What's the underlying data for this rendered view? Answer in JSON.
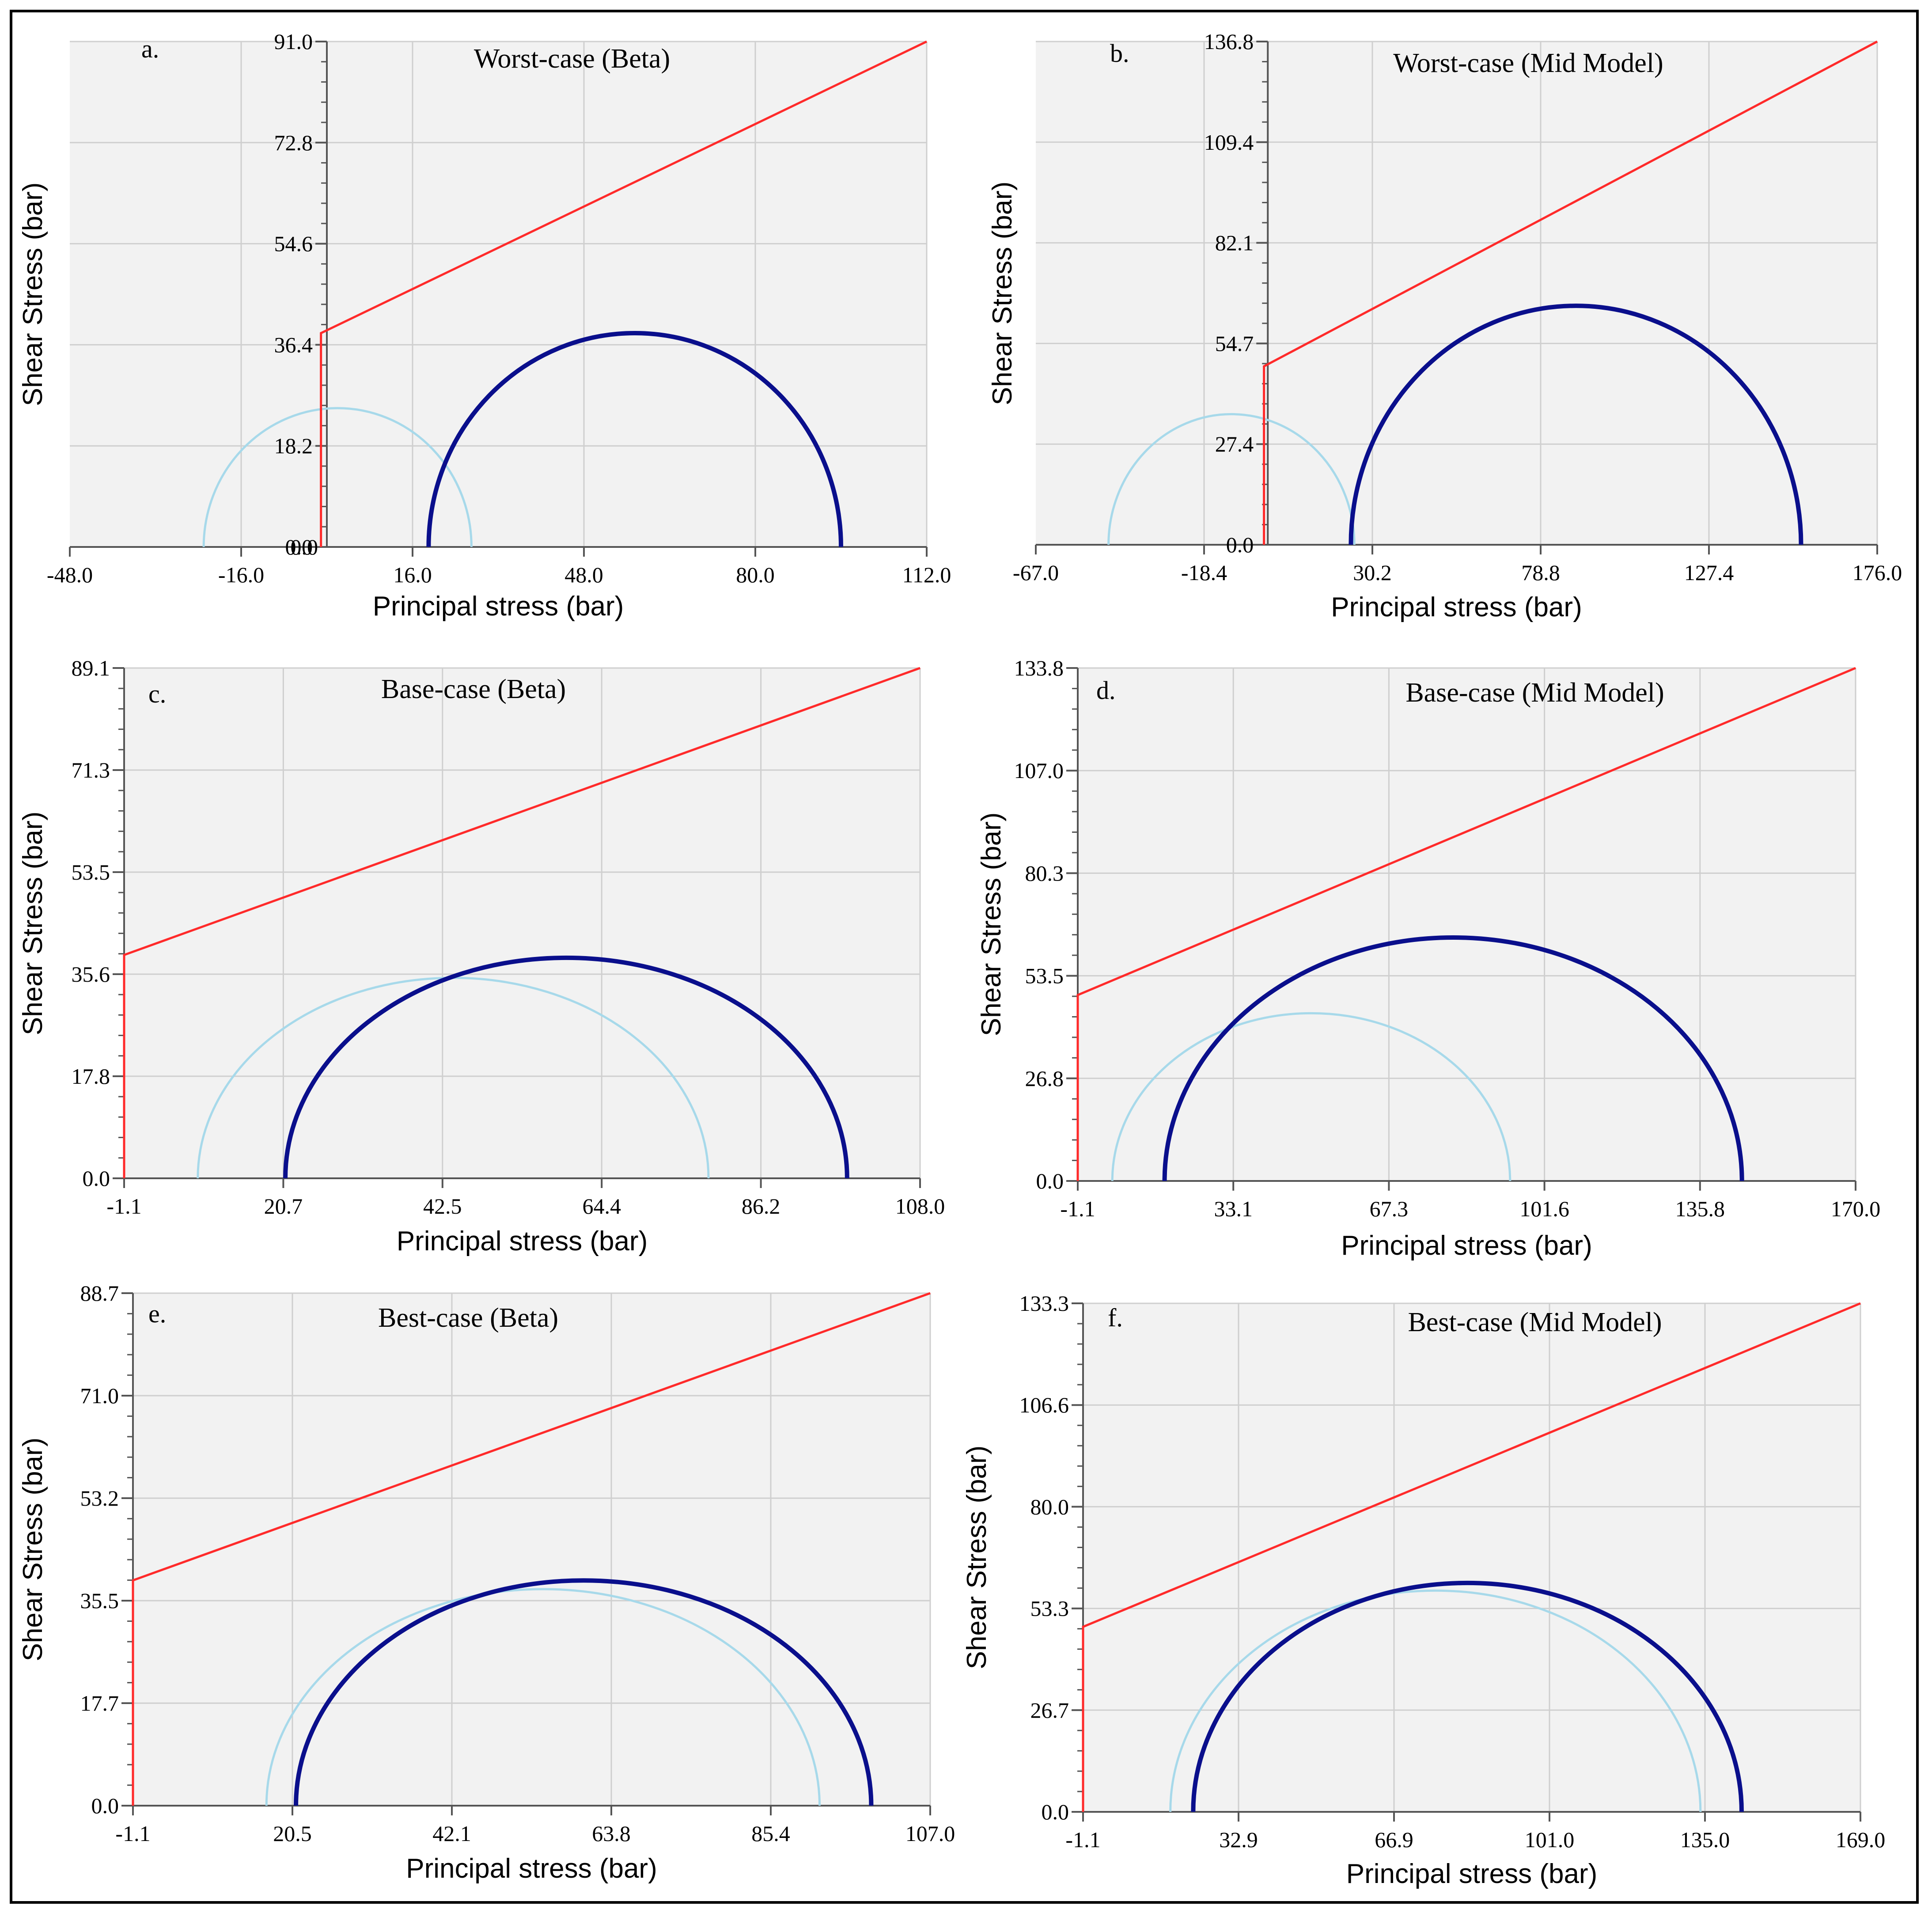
{
  "figure": {
    "panels_count": 6,
    "colors": {
      "plot_background": "#f2f2f2",
      "grid": "#cfcfcf",
      "axis": "#555555",
      "envelope": "#ff2a2a",
      "circle_light": "#a7d9ea",
      "circle_dark": "#0a0f8c"
    }
  },
  "chart_data": [
    {
      "type": "line",
      "panel_letter": "a.",
      "title": "Worst-case (Beta)",
      "xlabel": "Principal stress (bar)",
      "ylabel": "Shear Stress (bar)",
      "xlim": [
        -48.0,
        112.0
      ],
      "ylim": [
        0.0,
        91.0
      ],
      "xticks": [
        "-48.0",
        "-16.0",
        "16.0",
        "48.0",
        "80.0",
        "112.0"
      ],
      "yticks": [
        "0.0",
        "18.2",
        "36.4",
        "54.6",
        "72.8",
        "91.0"
      ],
      "y_axis_at_x": 0.0,
      "y_axis_extra_label": "0.0",
      "envelope": {
        "x_start": -1.1,
        "cohesion": 38.5,
        "x_end": 112.0,
        "y_end": 91.0
      },
      "circles": [
        {
          "name": "light-circle",
          "sigma3": -23.0,
          "sigma1": 27.0
        },
        {
          "name": "dark-circle",
          "sigma3": 19.0,
          "sigma1": 96.0
        }
      ]
    },
    {
      "type": "line",
      "panel_letter": "b.",
      "title": "Worst-case (Mid Model)",
      "xlabel": "Principal stress (bar)",
      "ylabel": "Shear Stress (bar)",
      "xlim": [
        -67.0,
        176.0
      ],
      "ylim": [
        0.0,
        136.8
      ],
      "xticks": [
        "-67.0",
        "-18.4",
        "30.2",
        "78.8",
        "127.4",
        "176.0"
      ],
      "yticks": [
        "0.0",
        "27.4",
        "54.7",
        "82.1",
        "109.4",
        "136.8"
      ],
      "y_axis_at_x": 0.0,
      "envelope": {
        "x_start": -1.1,
        "cohesion": 48.5,
        "x_end": 176.0,
        "y_end": 136.8
      },
      "circles": [
        {
          "name": "light-circle",
          "sigma3": -46.0,
          "sigma1": 25.0
        },
        {
          "name": "dark-circle",
          "sigma3": 24.0,
          "sigma1": 154.0
        }
      ]
    },
    {
      "type": "line",
      "panel_letter": "c.",
      "title": "Base-case (Beta)",
      "xlabel": "Principal stress (bar)",
      "ylabel": "Shear Stress (bar)",
      "xlim": [
        -1.1,
        108.0
      ],
      "ylim": [
        0.0,
        89.1
      ],
      "xticks": [
        "-1.1",
        "20.7",
        "42.5",
        "64.4",
        "86.2",
        "108.0"
      ],
      "yticks": [
        "0.0",
        "17.8",
        "35.6",
        "53.5",
        "71.3",
        "89.1"
      ],
      "y_axis_at_x": -1.1,
      "envelope": {
        "x_start": -1.1,
        "cohesion": 39.0,
        "x_end": 108.0,
        "y_end": 89.1
      },
      "circles": [
        {
          "name": "light-circle",
          "sigma3": 9.0,
          "sigma1": 79.0
        },
        {
          "name": "dark-circle",
          "sigma3": 21.0,
          "sigma1": 98.0
        }
      ]
    },
    {
      "type": "line",
      "panel_letter": "d.",
      "title": "Base-case (Mid Model)",
      "xlabel": "Principal stress (bar)",
      "ylabel": "Shear Stress (bar)",
      "xlim": [
        -1.1,
        170.0
      ],
      "ylim": [
        0.0,
        133.8
      ],
      "xticks": [
        "-1.1",
        "33.1",
        "67.3",
        "101.6",
        "135.8",
        "170.0"
      ],
      "yticks": [
        "0.0",
        "26.8",
        "53.5",
        "80.3",
        "107.0",
        "133.8"
      ],
      "y_axis_at_x": -1.1,
      "envelope": {
        "x_start": -1.1,
        "cohesion": 48.5,
        "x_end": 170.0,
        "y_end": 133.8
      },
      "circles": [
        {
          "name": "light-circle",
          "sigma3": 6.5,
          "sigma1": 94.0
        },
        {
          "name": "dark-circle",
          "sigma3": 18.0,
          "sigma1": 145.0
        }
      ]
    },
    {
      "type": "line",
      "panel_letter": "e.",
      "title": "Best-case (Beta)",
      "xlabel": "Principal stress (bar)",
      "ylabel": "Shear Stress (bar)",
      "xlim": [
        -1.1,
        107.0
      ],
      "ylim": [
        0.0,
        88.7
      ],
      "xticks": [
        "-1.1",
        "20.5",
        "42.1",
        "63.8",
        "85.4",
        "107.0"
      ],
      "yticks": [
        "0.0",
        "17.7",
        "35.5",
        "53.2",
        "71.0",
        "88.7"
      ],
      "y_axis_at_x": -1.1,
      "envelope": {
        "x_start": -1.1,
        "cohesion": 39.0,
        "x_end": 107.0,
        "y_end": 88.7
      },
      "circles": [
        {
          "name": "light-circle",
          "sigma3": 17.0,
          "sigma1": 92.0
        },
        {
          "name": "dark-circle",
          "sigma3": 21.0,
          "sigma1": 99.0
        }
      ]
    },
    {
      "type": "line",
      "panel_letter": "f.",
      "title": "Best-case (Mid Model)",
      "xlabel": "Principal stress (bar)",
      "ylabel": "Shear Stress (bar)",
      "xlim": [
        -1.1,
        169.0
      ],
      "ylim": [
        0.0,
        133.3
      ],
      "xticks": [
        "-1.1",
        "32.9",
        "66.9",
        "101.0",
        "135.0",
        "169.0"
      ],
      "yticks": [
        "0.0",
        "26.7",
        "53.3",
        "80.0",
        "106.6",
        "133.3"
      ],
      "y_axis_at_x": -1.1,
      "envelope": {
        "x_start": -1.1,
        "cohesion": 48.5,
        "x_end": 169.0,
        "y_end": 133.3
      },
      "circles": [
        {
          "name": "light-circle",
          "sigma3": 18.0,
          "sigma1": 134.0
        },
        {
          "name": "dark-circle",
          "sigma3": 23.0,
          "sigma1": 143.0
        }
      ]
    }
  ]
}
